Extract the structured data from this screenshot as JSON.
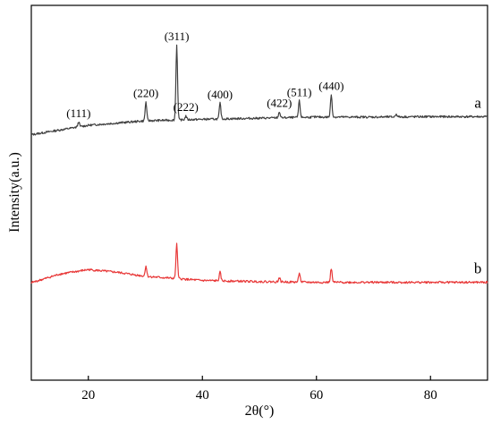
{
  "chart_data": {
    "type": "line",
    "title": "",
    "xlabel": "2θ(°)",
    "ylabel": "Intensity(a.u.)",
    "xlim": [
      10,
      90
    ],
    "ylim": [
      0,
      100
    ],
    "x_ticks": [
      20,
      40,
      60,
      80
    ],
    "y_ticks_shown": false,
    "grid": false,
    "legend": "none",
    "series": [
      {
        "name": "a",
        "color": "#404040",
        "baseline": {
          "x": [
            10,
            20,
            30,
            40,
            50,
            60,
            70,
            80,
            90
          ],
          "y": [
            65.5,
            68.0,
            69.2,
            69.6,
            69.9,
            70.2,
            70.2,
            70.3,
            70.3
          ]
        },
        "peaks": [
          {
            "x": 18.3,
            "height": 1.3,
            "label": "(111)"
          },
          {
            "x": 30.1,
            "height": 5.0,
            "label": "(220)"
          },
          {
            "x": 35.5,
            "height": 20.0,
            "label": "(311)"
          },
          {
            "x": 37.1,
            "height": 1.0,
            "label": "(222)"
          },
          {
            "x": 43.1,
            "height": 4.2,
            "label": "(400)"
          },
          {
            "x": 53.5,
            "height": 1.6,
            "label": "(422)"
          },
          {
            "x": 57.0,
            "height": 4.4,
            "label": "(511)"
          },
          {
            "x": 62.6,
            "height": 6.0,
            "label": "(440)"
          },
          {
            "x": 74.0,
            "height": 0.8,
            "label": ""
          }
        ]
      },
      {
        "name": "b",
        "color": "#e83838",
        "baseline": {
          "x": [
            10,
            15,
            20,
            25,
            30,
            40,
            50,
            60,
            70,
            80,
            90
          ],
          "y": [
            26.0,
            28.3,
            29.5,
            28.8,
            27.7,
            26.6,
            26.3,
            26.1,
            26.1,
            26.1,
            26.1
          ]
        },
        "peaks": [
          {
            "x": 30.1,
            "height": 2.8,
            "label": ""
          },
          {
            "x": 35.5,
            "height": 9.2,
            "label": ""
          },
          {
            "x": 43.1,
            "height": 2.3,
            "label": ""
          },
          {
            "x": 53.5,
            "height": 1.1,
            "label": ""
          },
          {
            "x": 57.0,
            "height": 2.6,
            "label": ""
          },
          {
            "x": 62.6,
            "height": 3.7,
            "label": ""
          }
        ]
      }
    ]
  }
}
